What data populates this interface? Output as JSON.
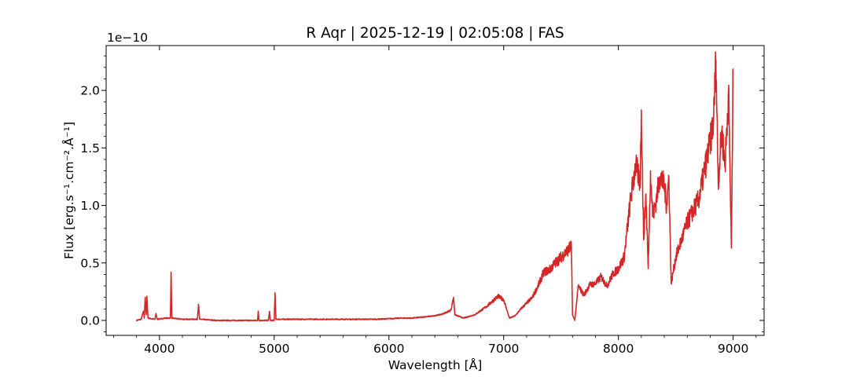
{
  "chart_data": {
    "type": "line",
    "title": "R Aqr | 2025-12-19 | 02:05:08 | FAS",
    "xlabel": "Wavelength [Å]",
    "ylabel": "Flux [erg.s⁻¹.cm⁻².Å⁻¹]",
    "y_offset_label": "1e−10",
    "y_scale_factor": 1e-10,
    "xlim": [
      3535,
      9270
    ],
    "ylim": [
      -0.13,
      2.39
    ],
    "x_ticks": [
      4000,
      5000,
      6000,
      7000,
      8000,
      9000
    ],
    "x_tick_labels": [
      "4000",
      "5000",
      "6000",
      "7000",
      "8000",
      "9000"
    ],
    "y_ticks": [
      0.0,
      0.5,
      1.0,
      1.5,
      2.0
    ],
    "y_tick_labels": [
      "0.0",
      "0.5",
      "1.0",
      "1.5",
      "2.0"
    ],
    "minor_ticks": true,
    "grid": false,
    "series": [
      {
        "color": "#d62728",
        "x": [
          3800,
          3840,
          3860,
          3868,
          3875,
          3885,
          3890,
          3900,
          3960,
          3970,
          3980,
          4050,
          4095,
          4101,
          4108,
          4200,
          4330,
          4340,
          4350,
          4500,
          4700,
          4855,
          4861,
          4868,
          4950,
          4959,
          4966,
          5000,
          5007,
          5015,
          5200,
          5500,
          5700,
          5900,
          6100,
          6200,
          6300,
          6400,
          6480,
          6540,
          6563,
          6575,
          6650,
          6750,
          6850,
          6950,
          7000,
          7050,
          7100,
          7150,
          7200,
          7250,
          7300,
          7350,
          7400,
          7450,
          7500,
          7550,
          7590,
          7600,
          7620,
          7650,
          7700,
          7750,
          7800,
          7850,
          7900,
          7950,
          8000,
          8050,
          8100,
          8150,
          8190,
          8200,
          8220,
          8240,
          8260,
          8280,
          8300,
          8330,
          8360,
          8400,
          8420,
          8440,
          8460,
          8500,
          8550,
          8600,
          8650,
          8700,
          8750,
          8800,
          8830,
          8850,
          8870,
          8900,
          8930,
          8960,
          8985,
          9000
        ],
        "y": [
          0.0,
          0.01,
          0.08,
          0.02,
          0.2,
          0.05,
          0.21,
          0.02,
          0.01,
          0.06,
          0.01,
          0.02,
          0.02,
          0.42,
          0.02,
          0.01,
          0.01,
          0.14,
          0.01,
          0.0,
          0.0,
          0.0,
          0.08,
          0.0,
          0.0,
          0.08,
          0.0,
          0.0,
          0.24,
          0.01,
          0.01,
          0.01,
          0.01,
          0.01,
          0.02,
          0.02,
          0.03,
          0.04,
          0.06,
          0.09,
          0.2,
          0.05,
          0.02,
          0.05,
          0.12,
          0.21,
          0.18,
          0.02,
          0.04,
          0.1,
          0.15,
          0.2,
          0.3,
          0.42,
          0.44,
          0.5,
          0.55,
          0.6,
          0.65,
          0.05,
          0.0,
          0.3,
          0.22,
          0.31,
          0.32,
          0.38,
          0.3,
          0.4,
          0.45,
          0.55,
          1.0,
          1.35,
          1.2,
          1.83,
          0.7,
          1.1,
          0.45,
          1.3,
          0.9,
          1.05,
          1.25,
          1.18,
          1.0,
          1.25,
          0.32,
          0.55,
          0.7,
          0.85,
          0.95,
          1.05,
          1.3,
          1.55,
          1.75,
          2.27,
          1.2,
          1.65,
          1.35,
          2.0,
          0.63,
          2.19
        ]
      }
    ]
  }
}
